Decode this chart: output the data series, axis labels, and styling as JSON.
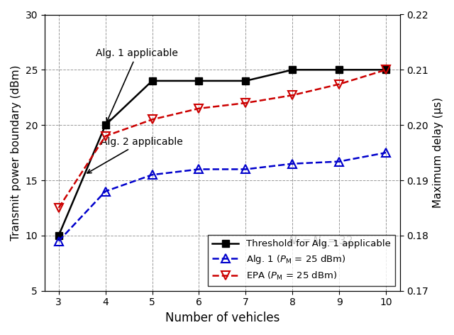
{
  "x": [
    3,
    4,
    5,
    6,
    7,
    8,
    9,
    10
  ],
  "threshold_y": [
    10,
    20,
    24,
    24,
    24,
    25,
    25,
    25
  ],
  "alg1_y": [
    9.5,
    14.0,
    15.5,
    16.0,
    16.0,
    16.5,
    16.7,
    17.5
  ],
  "epa_y": [
    12.5,
    19.0,
    20.5,
    21.5,
    22.0,
    22.7,
    23.7,
    25.0
  ],
  "left_ylim": [
    5,
    30
  ],
  "left_yticks": [
    5,
    10,
    15,
    20,
    25,
    30
  ],
  "right_ylim": [
    0.17,
    0.22
  ],
  "right_yticks": [
    0.17,
    0.18,
    0.19,
    0.2,
    0.21,
    0.22
  ],
  "xlabel": "Number of vehicles",
  "ylabel_left": "Transmit power boundary (dBm)",
  "ylabel_right": "Maximum delay (μs)",
  "threshold_color": "#000000",
  "alg1_color": "#0000CC",
  "epa_color": "#CC0000",
  "background_color": "#ffffff",
  "grid_color": "#999999",
  "legend_labels": [
    "Threshold for Alg. 1 applicable",
    "Alg. 1 ($P_{\\mathrm{M}}$ = 25 dBm)",
    "EPA ($P_{\\mathrm{M}}$ = 25 dBm)"
  ]
}
